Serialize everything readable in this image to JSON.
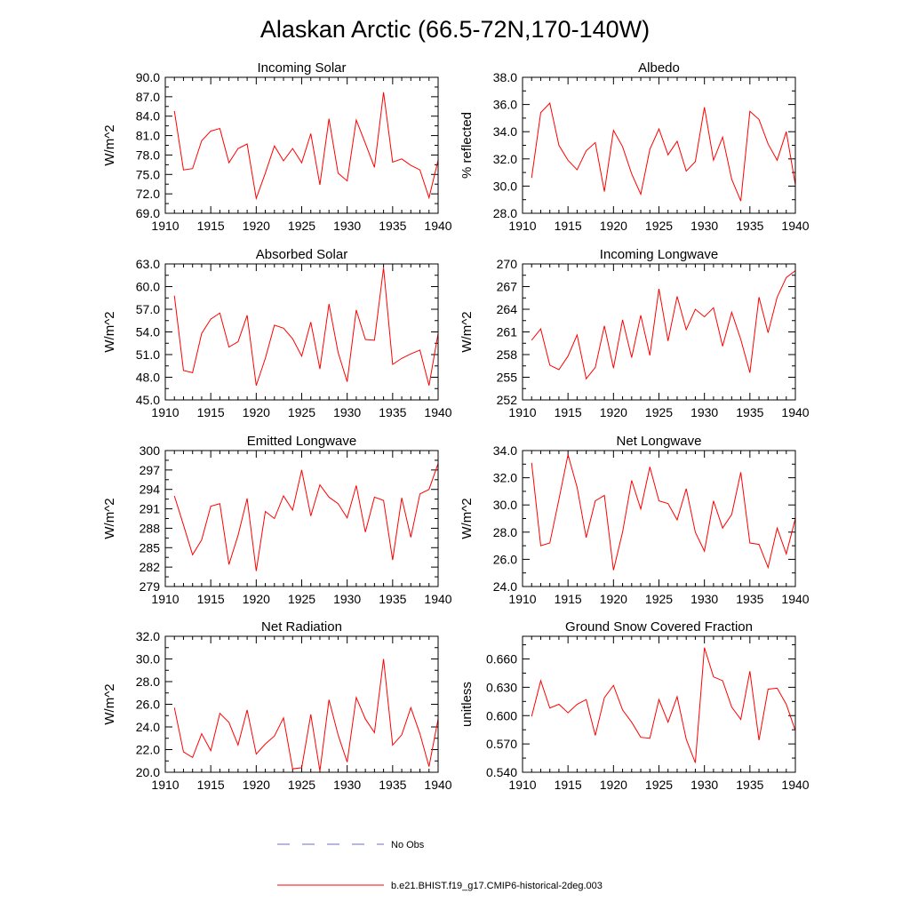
{
  "title": "Alaskan Arctic (66.5-72N,170-140W)",
  "colors": {
    "model": "#ff0000",
    "obs": "#6b6bd6",
    "axis": "#000000"
  },
  "legend": {
    "obs_label": "No Obs",
    "model_label": "b.e21.BHIST.f19_g17.CMIP6-historical-2deg.003"
  },
  "chart_data": [
    {
      "type": "line",
      "title": "Incoming Solar",
      "ylabel": "W/m^2",
      "xlim": [
        1910,
        1940
      ],
      "ylim": [
        69.0,
        90.0
      ],
      "xticks": [
        1910,
        1915,
        1920,
        1925,
        1930,
        1935,
        1940
      ],
      "yticks": [
        "69.0",
        "72.0",
        "75.0",
        "78.0",
        "81.0",
        "84.0",
        "87.0",
        "90.0"
      ],
      "x": [
        1911,
        1912,
        1913,
        1914,
        1915,
        1916,
        1917,
        1918,
        1919,
        1920,
        1921,
        1922,
        1923,
        1924,
        1925,
        1926,
        1927,
        1928,
        1929,
        1930,
        1931,
        1932,
        1933,
        1934,
        1935,
        1936,
        1937,
        1938,
        1939,
        1940
      ],
      "series": [
        {
          "values": [
            84.8,
            75.7,
            75.9,
            80.2,
            81.7,
            82.1,
            76.8,
            79.0,
            79.7,
            71.3,
            75.2,
            79.4,
            77.1,
            79.0,
            76.8,
            81.3,
            73.4,
            83.6,
            75.2,
            74.0,
            83.4,
            79.8,
            76.1,
            87.7,
            76.9,
            77.4,
            76.4,
            75.7,
            71.4,
            77.2
          ]
        }
      ]
    },
    {
      "type": "line",
      "title": "Albedo",
      "ylabel": "% reflected",
      "xlim": [
        1910,
        1940
      ],
      "ylim": [
        28.0,
        38.0
      ],
      "xticks": [
        1910,
        1915,
        1920,
        1925,
        1930,
        1935,
        1940
      ],
      "yticks": [
        "28.0",
        "30.0",
        "32.0",
        "34.0",
        "36.0",
        "38.0"
      ],
      "x": [
        1911,
        1912,
        1913,
        1914,
        1915,
        1916,
        1917,
        1918,
        1919,
        1920,
        1921,
        1922,
        1923,
        1924,
        1925,
        1926,
        1927,
        1928,
        1929,
        1930,
        1931,
        1932,
        1933,
        1934,
        1935,
        1936,
        1937,
        1938,
        1939,
        1940
      ],
      "series": [
        {
          "values": [
            30.6,
            35.4,
            36.1,
            33.0,
            31.9,
            31.2,
            32.6,
            33.2,
            29.6,
            34.1,
            32.9,
            30.9,
            29.4,
            32.7,
            34.2,
            32.3,
            33.3,
            31.1,
            31.8,
            35.8,
            31.9,
            33.6,
            30.5,
            28.9,
            35.5,
            34.9,
            33.1,
            31.9,
            34.0,
            30.1
          ]
        }
      ]
    },
    {
      "type": "line",
      "title": "Absorbed Solar",
      "ylabel": "W/m^2",
      "xlim": [
        1910,
        1940
      ],
      "ylim": [
        45.0,
        63.0
      ],
      "xticks": [
        1910,
        1915,
        1920,
        1925,
        1930,
        1935,
        1940
      ],
      "yticks": [
        "45.0",
        "48.0",
        "51.0",
        "54.0",
        "57.0",
        "60.0",
        "63.0"
      ],
      "x": [
        1911,
        1912,
        1913,
        1914,
        1915,
        1916,
        1917,
        1918,
        1919,
        1920,
        1921,
        1922,
        1923,
        1924,
        1925,
        1926,
        1927,
        1928,
        1929,
        1930,
        1931,
        1932,
        1933,
        1934,
        1935,
        1936,
        1937,
        1938,
        1939,
        1940
      ],
      "series": [
        {
          "values": [
            58.8,
            48.9,
            48.6,
            53.8,
            55.7,
            56.5,
            52.0,
            52.7,
            56.2,
            46.9,
            50.5,
            54.9,
            54.5,
            53.1,
            50.8,
            55.3,
            49.1,
            57.7,
            51.3,
            47.4,
            56.9,
            53.0,
            52.9,
            62.5,
            49.7,
            50.5,
            51.1,
            51.6,
            46.9,
            53.8
          ]
        }
      ]
    },
    {
      "type": "line",
      "title": "Incoming Longwave",
      "ylabel": "W/m^2",
      "xlim": [
        1910,
        1940
      ],
      "ylim": [
        252,
        270
      ],
      "xticks": [
        1910,
        1915,
        1920,
        1925,
        1930,
        1935,
        1940
      ],
      "yticks": [
        "252",
        "255",
        "258",
        "261",
        "264",
        "267",
        "270"
      ],
      "x": [
        1911,
        1912,
        1913,
        1914,
        1915,
        1916,
        1917,
        1918,
        1919,
        1920,
        1921,
        1922,
        1923,
        1924,
        1925,
        1926,
        1927,
        1928,
        1929,
        1930,
        1931,
        1932,
        1933,
        1934,
        1935,
        1936,
        1937,
        1938,
        1939,
        1940
      ],
      "series": [
        {
          "values": [
            259.9,
            261.4,
            256.6,
            256.0,
            257.8,
            260.6,
            254.8,
            256.3,
            261.8,
            256.2,
            262.6,
            257.6,
            263.2,
            257.9,
            266.7,
            259.8,
            265.7,
            261.3,
            264.0,
            263.0,
            264.2,
            259.1,
            263.6,
            260.0,
            255.6,
            265.6,
            260.9,
            265.6,
            268.2,
            269.1
          ]
        }
      ]
    },
    {
      "type": "line",
      "title": "Emitted Longwave",
      "ylabel": "W/m^2",
      "xlim": [
        1910,
        1940
      ],
      "ylim": [
        279,
        300
      ],
      "xticks": [
        1910,
        1915,
        1920,
        1925,
        1930,
        1935,
        1940
      ],
      "yticks": [
        "279",
        "282",
        "285",
        "288",
        "291",
        "294",
        "297",
        "300"
      ],
      "x": [
        1911,
        1912,
        1913,
        1914,
        1915,
        1916,
        1917,
        1918,
        1919,
        1920,
        1921,
        1922,
        1923,
        1924,
        1925,
        1926,
        1927,
        1928,
        1929,
        1930,
        1931,
        1932,
        1933,
        1934,
        1935,
        1936,
        1937,
        1938,
        1939,
        1940
      ],
      "series": [
        {
          "values": [
            293.0,
            288.5,
            283.9,
            286.2,
            291.4,
            291.8,
            282.4,
            286.9,
            292.6,
            281.4,
            290.6,
            289.5,
            293.0,
            290.8,
            297.0,
            289.9,
            294.7,
            292.8,
            291.8,
            289.6,
            294.6,
            287.4,
            292.8,
            292.3,
            283.1,
            292.7,
            286.6,
            293.3,
            294.0,
            298.0
          ]
        }
      ]
    },
    {
      "type": "line",
      "title": "Net Longwave",
      "ylabel": "W/m^2",
      "xlim": [
        1910,
        1940
      ],
      "ylim": [
        24.0,
        34.0
      ],
      "xticks": [
        1910,
        1915,
        1920,
        1925,
        1930,
        1935,
        1940
      ],
      "yticks": [
        "24.0",
        "26.0",
        "28.0",
        "30.0",
        "32.0",
        "34.0"
      ],
      "x": [
        1911,
        1912,
        1913,
        1914,
        1915,
        1916,
        1917,
        1918,
        1919,
        1920,
        1921,
        1922,
        1923,
        1924,
        1925,
        1926,
        1927,
        1928,
        1929,
        1930,
        1931,
        1932,
        1933,
        1934,
        1935,
        1936,
        1937,
        1938,
        1939,
        1940
      ],
      "series": [
        {
          "values": [
            33.1,
            27.0,
            27.2,
            30.4,
            33.7,
            31.3,
            27.6,
            30.3,
            30.7,
            25.2,
            28.0,
            31.8,
            29.7,
            32.8,
            30.3,
            30.1,
            28.9,
            31.2,
            28.0,
            26.6,
            30.3,
            28.3,
            29.3,
            32.4,
            27.2,
            27.1,
            25.4,
            28.3,
            26.4,
            29.0
          ]
        }
      ]
    },
    {
      "type": "line",
      "title": "Net Radiation",
      "ylabel": "W/m^2",
      "xlim": [
        1910,
        1940
      ],
      "ylim": [
        20.0,
        32.0
      ],
      "xticks": [
        1910,
        1915,
        1920,
        1925,
        1930,
        1935,
        1940
      ],
      "yticks": [
        "20.0",
        "22.0",
        "24.0",
        "26.0",
        "28.0",
        "30.0",
        "32.0"
      ],
      "x": [
        1911,
        1912,
        1913,
        1914,
        1915,
        1916,
        1917,
        1918,
        1919,
        1920,
        1921,
        1922,
        1923,
        1924,
        1925,
        1926,
        1927,
        1928,
        1929,
        1930,
        1931,
        1932,
        1933,
        1934,
        1935,
        1936,
        1937,
        1938,
        1939,
        1940
      ],
      "series": [
        {
          "values": [
            25.7,
            21.8,
            21.3,
            23.4,
            21.9,
            25.2,
            24.4,
            22.4,
            25.5,
            21.6,
            22.5,
            23.2,
            24.8,
            20.3,
            20.4,
            25.1,
            20.1,
            26.4,
            23.3,
            20.9,
            26.6,
            24.7,
            23.5,
            30.0,
            22.4,
            23.3,
            25.7,
            23.4,
            20.5,
            24.7
          ]
        }
      ]
    },
    {
      "type": "line",
      "title": "Ground Snow Covered Fraction",
      "ylabel": "unitless",
      "xlim": [
        1910,
        1940
      ],
      "ylim": [
        0.54,
        0.684
      ],
      "xticks": [
        1910,
        1915,
        1920,
        1925,
        1930,
        1935,
        1940
      ],
      "yticks": [
        "0.540",
        "0.570",
        "0.600",
        "0.630",
        "0.660"
      ],
      "x": [
        1911,
        1912,
        1913,
        1914,
        1915,
        1916,
        1917,
        1918,
        1919,
        1920,
        1921,
        1922,
        1923,
        1924,
        1925,
        1926,
        1927,
        1928,
        1929,
        1930,
        1931,
        1932,
        1933,
        1934,
        1935,
        1936,
        1937,
        1938,
        1939,
        1940
      ],
      "series": [
        {
          "values": [
            0.599,
            0.637,
            0.608,
            0.612,
            0.603,
            0.612,
            0.617,
            0.579,
            0.619,
            0.632,
            0.606,
            0.593,
            0.577,
            0.576,
            0.617,
            0.593,
            0.62,
            0.575,
            0.55,
            0.672,
            0.641,
            0.637,
            0.609,
            0.596,
            0.647,
            0.574,
            0.628,
            0.629,
            0.612,
            0.584
          ]
        }
      ]
    }
  ]
}
